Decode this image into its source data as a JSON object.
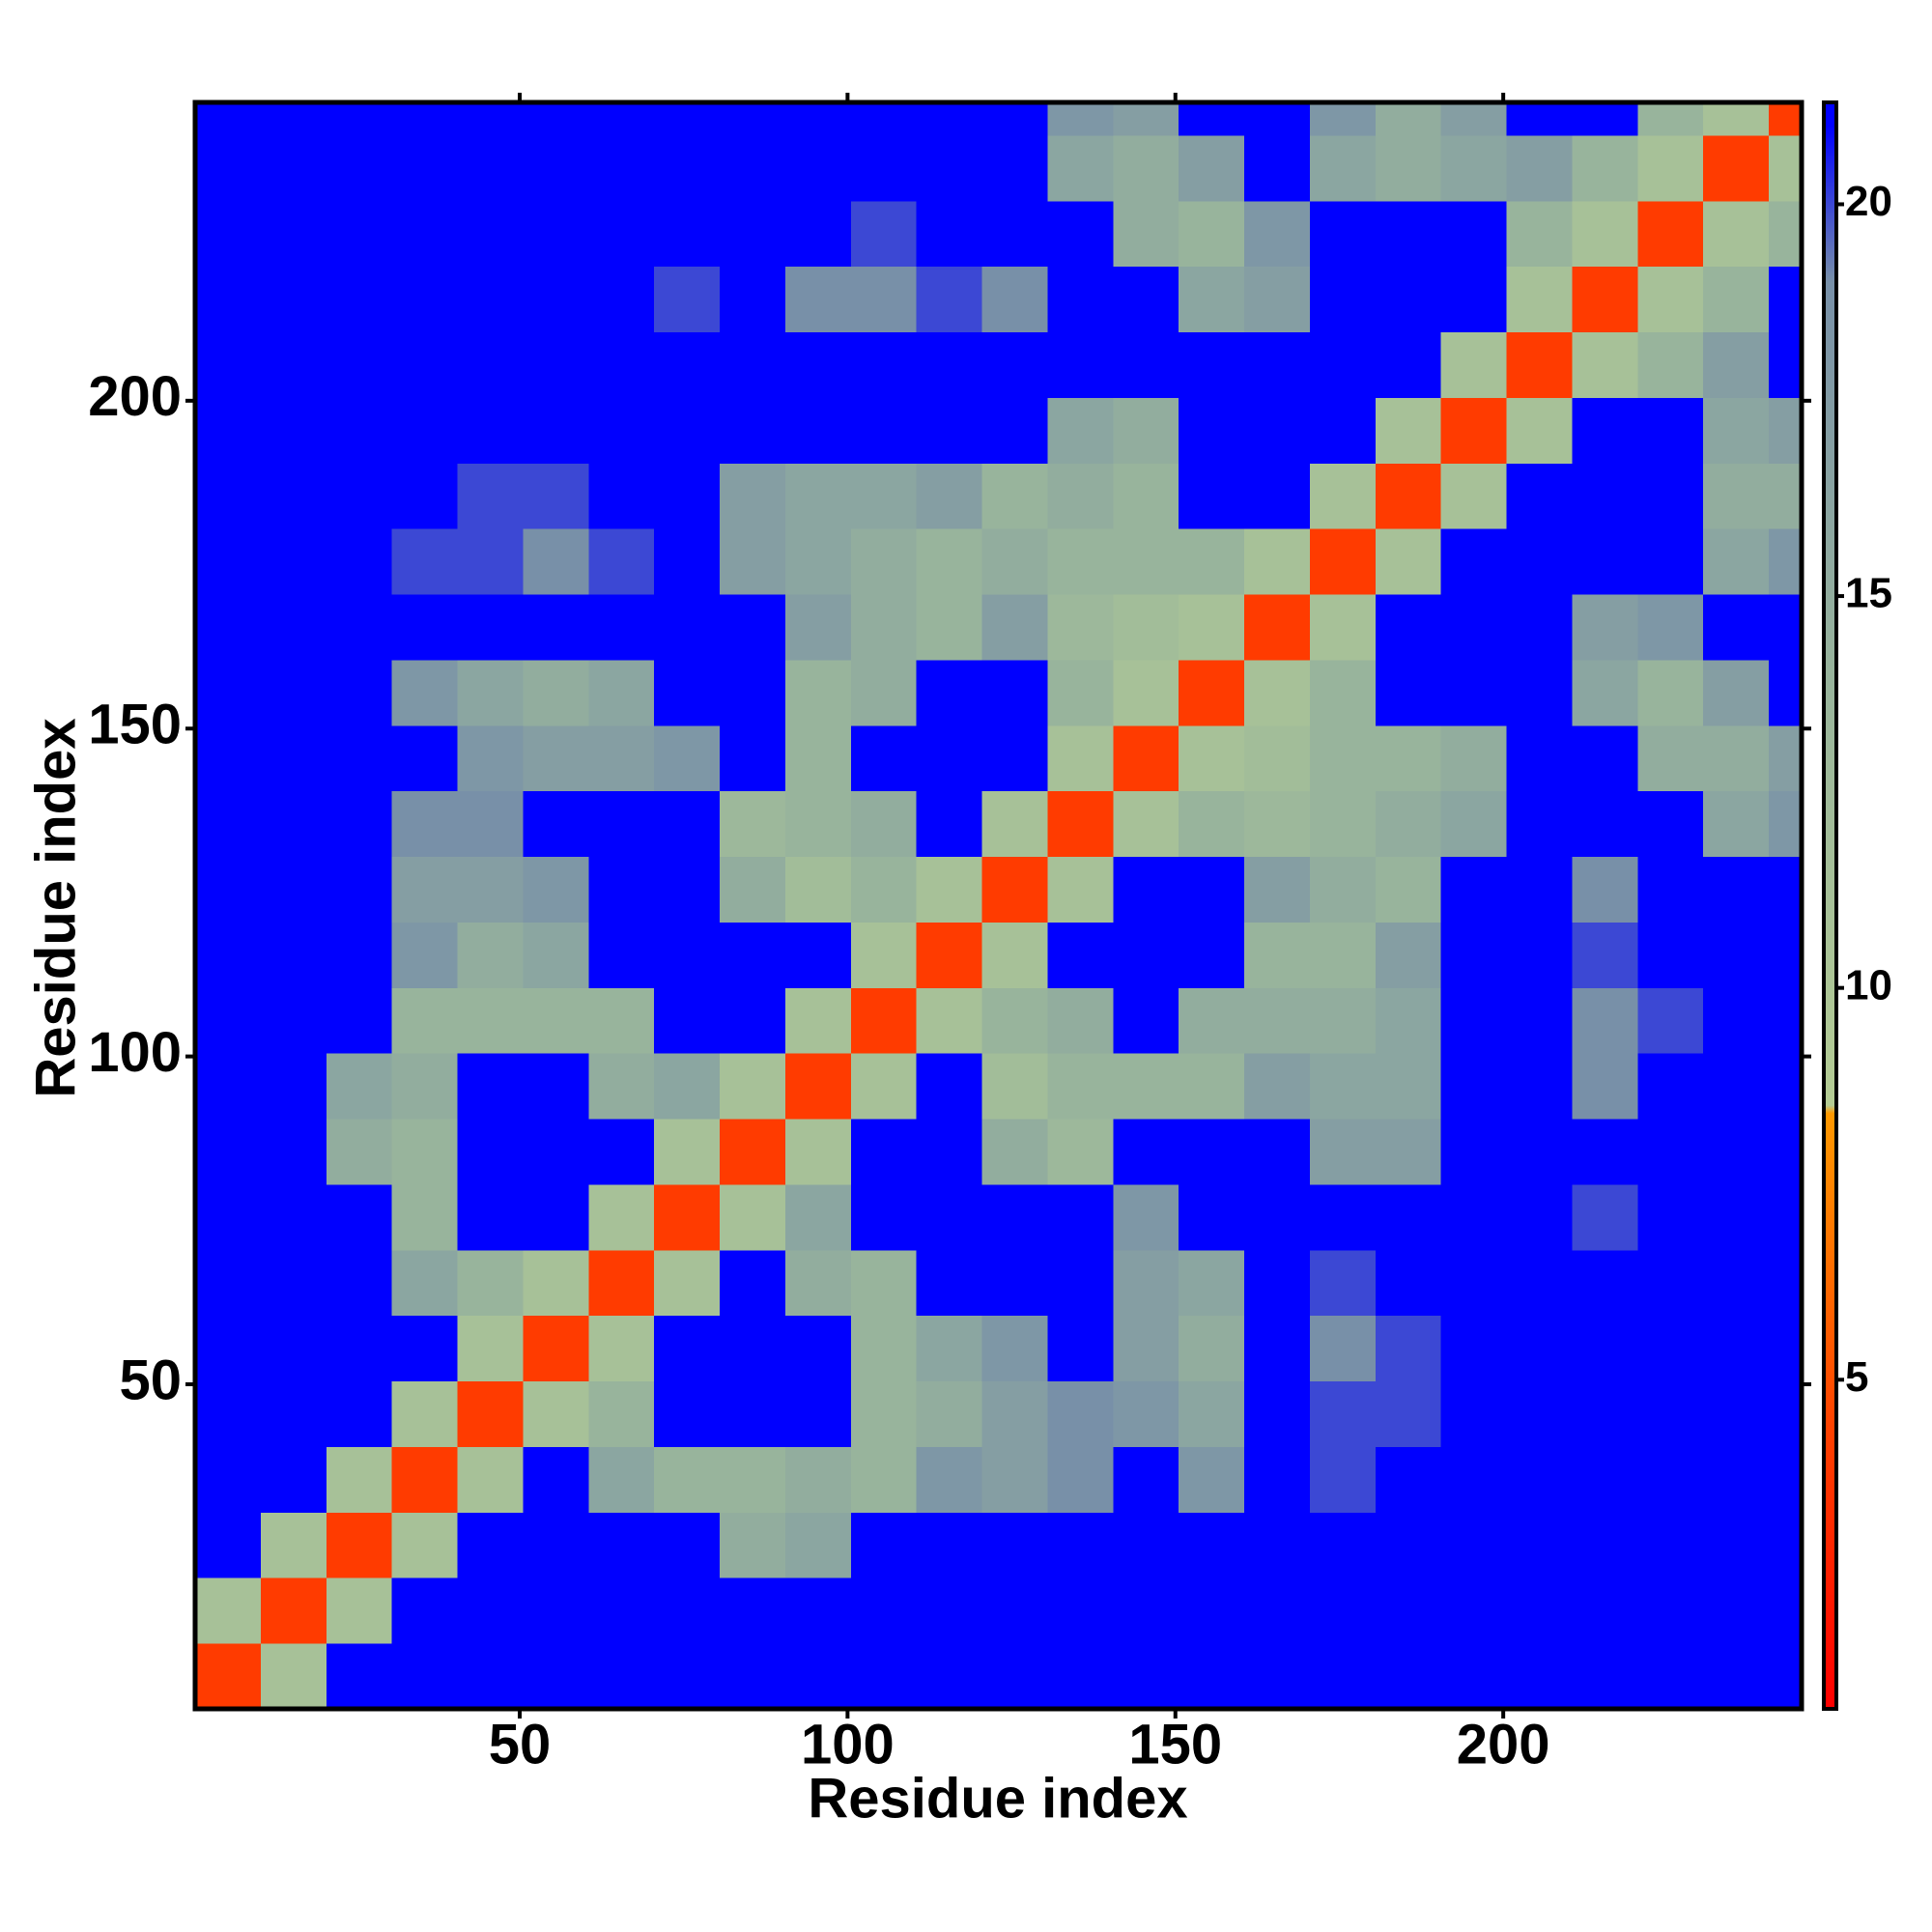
{
  "chart_data": {
    "type": "heatmap",
    "x_label": "Residue index",
    "y_label": "Residue index",
    "xbins": [
      0.5,
      10.5,
      20.5,
      30.5,
      40.5,
      50.5,
      60.5,
      70.5,
      80.5,
      90.5,
      100.5,
      110.5,
      120.5,
      130.5,
      140.5,
      150.5,
      160.5,
      170.5,
      180.5,
      190.5,
      200.5,
      210.5,
      220.5,
      230.5,
      240.5,
      245.5
    ],
    "ybins": [
      0.5,
      10.5,
      20.5,
      30.5,
      40.5,
      50.5,
      60.5,
      70.5,
      80.5,
      90.5,
      100.5,
      110.5,
      120.5,
      130.5,
      140.5,
      150.5,
      160.5,
      170.5,
      180.5,
      190.5,
      200.5,
      210.5,
      220.5,
      230.5,
      240.5,
      245.5
    ],
    "xlim": [
      0.5,
      245.5
    ],
    "ylim": [
      0.5,
      245.5
    ],
    "xticks": [
      50,
      100,
      150,
      200
    ],
    "yticks": [
      50,
      100,
      150,
      200
    ],
    "z": [
      [
        4,
        11,
        21,
        21,
        21,
        21,
        21,
        21,
        21,
        21,
        21,
        21,
        21,
        21,
        21,
        21,
        21,
        21,
        21,
        21,
        21,
        21,
        21,
        21,
        21
      ],
      [
        11,
        4,
        11,
        21,
        21,
        21,
        21,
        21,
        21,
        21,
        21,
        21,
        21,
        21,
        21,
        21,
        21,
        21,
        21,
        21,
        21,
        21,
        21,
        21,
        21
      ],
      [
        21,
        11,
        4,
        11,
        21,
        21,
        21,
        21,
        15,
        16,
        21,
        21,
        21,
        21,
        21,
        21,
        21,
        21,
        21,
        21,
        21,
        21,
        21,
        21,
        21
      ],
      [
        21,
        21,
        11,
        4,
        11,
        21,
        16,
        14,
        14,
        15,
        14,
        18,
        17,
        19,
        21,
        18,
        21,
        20,
        21,
        21,
        21,
        21,
        21,
        21,
        21
      ],
      [
        21,
        21,
        21,
        11,
        4,
        11,
        14,
        21,
        21,
        21,
        14,
        15,
        17,
        19,
        18,
        16,
        21,
        20,
        20,
        21,
        21,
        21,
        21,
        21,
        21
      ],
      [
        21,
        21,
        21,
        21,
        11,
        4,
        11,
        21,
        21,
        21,
        14,
        16,
        18,
        21,
        17,
        15,
        21,
        19,
        20,
        21,
        21,
        21,
        21,
        21,
        21
      ],
      [
        21,
        21,
        21,
        16,
        14,
        11,
        4,
        11,
        21,
        15,
        14,
        21,
        21,
        21,
        17,
        16,
        21,
        20,
        21,
        21,
        21,
        21,
        21,
        21,
        21
      ],
      [
        21,
        21,
        21,
        14,
        21,
        21,
        11,
        4,
        11,
        16,
        21,
        21,
        21,
        21,
        18,
        21,
        21,
        21,
        21,
        21,
        21,
        20,
        21,
        21,
        21
      ],
      [
        21,
        21,
        15,
        14,
        21,
        21,
        21,
        11,
        4,
        11,
        21,
        21,
        15,
        13,
        21,
        21,
        21,
        17,
        17,
        21,
        21,
        21,
        21,
        21,
        21
      ],
      [
        21,
        21,
        16,
        15,
        21,
        21,
        15,
        16,
        11,
        4,
        11,
        21,
        12,
        14,
        14,
        14,
        17,
        16,
        16,
        21,
        21,
        19,
        21,
        21,
        21
      ],
      [
        21,
        21,
        21,
        14,
        14,
        14,
        14,
        21,
        21,
        11,
        4,
        11,
        14,
        15,
        21,
        15,
        15,
        15,
        16,
        21,
        21,
        19,
        20,
        21,
        21
      ],
      [
        21,
        21,
        21,
        18,
        15,
        16,
        21,
        21,
        21,
        21,
        11,
        4,
        11,
        21,
        21,
        21,
        14,
        14,
        17,
        21,
        21,
        20,
        21,
        21,
        21
      ],
      [
        21,
        21,
        21,
        17,
        17,
        18,
        21,
        21,
        15,
        12,
        14,
        11,
        4,
        11,
        21,
        21,
        17,
        15,
        14,
        21,
        21,
        19,
        21,
        21,
        21
      ],
      [
        21,
        21,
        21,
        19,
        19,
        21,
        21,
        21,
        13,
        14,
        15,
        21,
        11,
        4,
        11,
        14,
        13,
        14,
        15,
        16,
        21,
        21,
        21,
        16,
        18
      ],
      [
        21,
        21,
        21,
        21,
        18,
        17,
        17,
        18,
        21,
        14,
        21,
        21,
        21,
        11,
        4,
        11,
        12,
        14,
        14,
        15,
        21,
        21,
        15,
        15,
        17
      ],
      [
        21,
        21,
        21,
        18,
        16,
        15,
        16,
        21,
        21,
        14,
        15,
        21,
        21,
        14,
        11,
        4,
        11,
        14,
        21,
        21,
        21,
        16,
        14,
        17,
        21
      ],
      [
        21,
        21,
        21,
        21,
        21,
        21,
        21,
        21,
        21,
        17,
        15,
        14,
        17,
        13,
        12,
        11,
        4,
        11,
        21,
        21,
        21,
        17,
        18,
        21,
        21
      ],
      [
        21,
        21,
        21,
        20,
        20,
        19,
        20,
        21,
        17,
        16,
        15,
        14,
        15,
        14,
        14,
        14,
        11,
        4,
        11,
        21,
        21,
        21,
        21,
        16,
        18
      ],
      [
        21,
        21,
        21,
        21,
        20,
        20,
        21,
        21,
        17,
        16,
        16,
        17,
        14,
        15,
        14,
        21,
        21,
        11,
        4,
        11,
        21,
        21,
        21,
        15,
        15
      ],
      [
        21,
        21,
        21,
        21,
        21,
        21,
        21,
        21,
        21,
        21,
        21,
        21,
        21,
        16,
        15,
        21,
        21,
        21,
        11,
        4,
        11,
        21,
        21,
        16,
        17
      ],
      [
        21,
        21,
        21,
        21,
        21,
        21,
        21,
        21,
        21,
        21,
        21,
        21,
        21,
        21,
        21,
        21,
        21,
        21,
        21,
        11,
        4,
        11,
        14,
        17,
        21
      ],
      [
        21,
        21,
        21,
        21,
        21,
        21,
        21,
        20,
        21,
        19,
        19,
        20,
        19,
        21,
        21,
        16,
        17,
        21,
        21,
        21,
        11,
        4,
        11,
        14,
        21
      ],
      [
        21,
        21,
        21,
        21,
        21,
        21,
        21,
        21,
        21,
        21,
        20,
        21,
        21,
        21,
        15,
        14,
        18,
        21,
        21,
        21,
        14,
        11,
        4,
        11,
        14
      ],
      [
        21,
        21,
        21,
        21,
        21,
        21,
        21,
        21,
        21,
        21,
        21,
        21,
        21,
        16,
        15,
        17,
        21,
        16,
        15,
        16,
        17,
        14,
        11,
        4,
        11
      ],
      [
        21,
        21,
        21,
        21,
        21,
        21,
        21,
        21,
        21,
        21,
        21,
        21,
        21,
        18,
        17,
        21,
        21,
        18,
        15,
        17,
        21,
        21,
        14,
        11,
        4
      ]
    ],
    "colorscale": [
      [
        0.8,
        "#ff0000"
      ],
      [
        4.5,
        "#ff4400"
      ],
      [
        8.4,
        "#ff9900"
      ],
      [
        8.5,
        "#b4cc94"
      ],
      [
        14,
        "#98b49c"
      ],
      [
        19,
        "#7890a8"
      ],
      [
        21,
        "#0000ff"
      ]
    ],
    "colorbar": {
      "lim": [
        0.8,
        21.3
      ],
      "ticks": [
        5,
        10,
        15,
        20
      ]
    }
  }
}
